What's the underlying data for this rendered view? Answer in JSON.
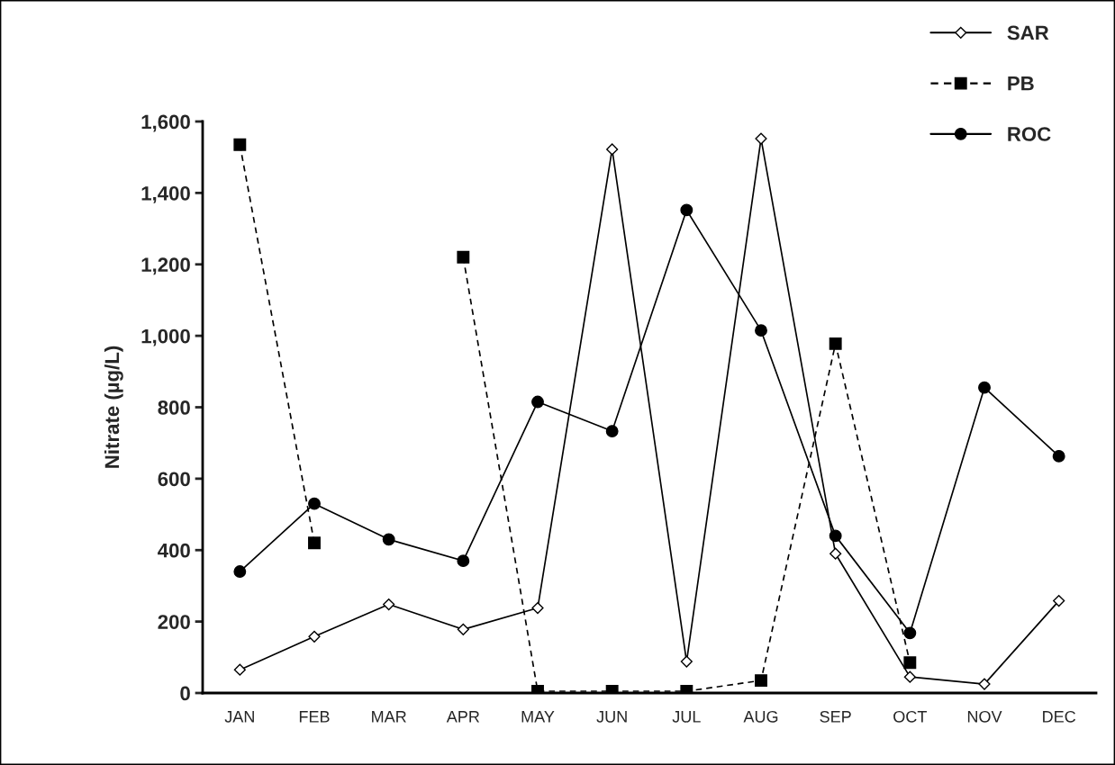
{
  "chart_data": {
    "type": "line",
    "ylabel": "Nitrate (µg/L)",
    "categories": [
      "JAN",
      "FEB",
      "MAR",
      "APR",
      "MAY",
      "JUN",
      "JUL",
      "AUG",
      "SEP",
      "OCT",
      "NOV",
      "DEC"
    ],
    "series": [
      {
        "name": "SAR",
        "color": "#000000",
        "marker": "diamond",
        "line_style": "solid",
        "values": [
          65,
          158,
          248,
          178,
          238,
          1522,
          88,
          1552,
          390,
          45,
          25,
          258
        ]
      },
      {
        "name": "PB",
        "color": "#000000",
        "marker": "square",
        "line_style": "dashed",
        "values": [
          1535,
          420,
          null,
          1220,
          5,
          5,
          5,
          35,
          978,
          85,
          null,
          null
        ]
      },
      {
        "name": "ROC",
        "color": "#000000",
        "marker": "circle",
        "line_style": "solid",
        "values": [
          340,
          530,
          430,
          370,
          815,
          733,
          1352,
          1015,
          440,
          168,
          855,
          663
        ]
      }
    ],
    "ylim": [
      0,
      1600
    ],
    "yticks": [
      {
        "value": 0,
        "label": "0"
      },
      {
        "value": 200,
        "label": "200"
      },
      {
        "value": 400,
        "label": "400"
      },
      {
        "value": 600,
        "label": "600"
      },
      {
        "value": 800,
        "label": "800"
      },
      {
        "value": 1000,
        "label": "1,000"
      },
      {
        "value": 1200,
        "label": "1,200"
      },
      {
        "value": 1400,
        "label": "1,400"
      },
      {
        "value": 1600,
        "label": "1,600"
      }
    ],
    "grid": false,
    "legend": "top right"
  }
}
